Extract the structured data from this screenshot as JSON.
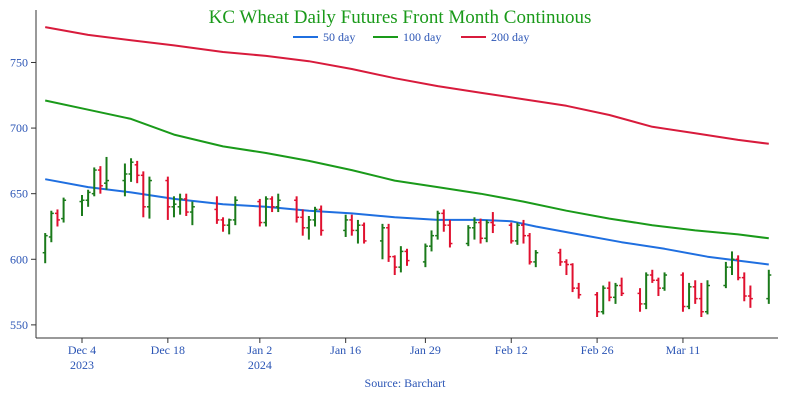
{
  "chart_data": {
    "type": "line",
    "title": "KC Wheat Daily Futures Front Month Continuous",
    "source": "Source: Barchart",
    "ylim": [
      540,
      790
    ],
    "yticks": [
      550,
      600,
      650,
      700,
      750
    ],
    "x_range": [
      "2023-11-28",
      "2024-03-25"
    ],
    "xticks": [
      {
        "date": "2023-12-04",
        "label": "Dec 4",
        "sublabel": "2023"
      },
      {
        "date": "2023-12-18",
        "label": "Dec 18",
        "sublabel": ""
      },
      {
        "date": "2024-01-02",
        "label": "Jan 2",
        "sublabel": "2024"
      },
      {
        "date": "2024-01-16",
        "label": "Jan 16",
        "sublabel": ""
      },
      {
        "date": "2024-01-29",
        "label": "Jan 29",
        "sublabel": ""
      },
      {
        "date": "2024-02-12",
        "label": "Feb 12",
        "sublabel": ""
      },
      {
        "date": "2024-02-26",
        "label": "Feb 26",
        "sublabel": ""
      },
      {
        "date": "2024-03-11",
        "label": "Mar 11",
        "sublabel": ""
      }
    ],
    "legend_position": "top-center",
    "grid": false,
    "colors": {
      "up": "#1a7a1a",
      "down": "#e0102f",
      "title": "#1a9a1a",
      "axis": "#333333"
    },
    "series": [
      {
        "name": "50 day",
        "color": "#1f6fe0",
        "points": [
          [
            "2023-11-28",
            661
          ],
          [
            "2023-12-05",
            655
          ],
          [
            "2023-12-12",
            651
          ],
          [
            "2023-12-19",
            646
          ],
          [
            "2023-12-27",
            642
          ],
          [
            "2024-01-03",
            640
          ],
          [
            "2024-01-10",
            637
          ],
          [
            "2024-01-17",
            635
          ],
          [
            "2024-01-24",
            632
          ],
          [
            "2024-01-31",
            630
          ],
          [
            "2024-02-07",
            630
          ],
          [
            "2024-02-12",
            629
          ],
          [
            "2024-02-16",
            625
          ],
          [
            "2024-02-23",
            619
          ],
          [
            "2024-03-01",
            613
          ],
          [
            "2024-03-08",
            608
          ],
          [
            "2024-03-15",
            602
          ],
          [
            "2024-03-25",
            596
          ]
        ]
      },
      {
        "name": "100 day",
        "color": "#1a9a1a",
        "points": [
          [
            "2023-11-28",
            721
          ],
          [
            "2023-12-05",
            714
          ],
          [
            "2023-12-12",
            707
          ],
          [
            "2023-12-19",
            695
          ],
          [
            "2023-12-27",
            686
          ],
          [
            "2024-01-03",
            681
          ],
          [
            "2024-01-10",
            675
          ],
          [
            "2024-01-17",
            668
          ],
          [
            "2024-01-24",
            660
          ],
          [
            "2024-01-31",
            655
          ],
          [
            "2024-02-07",
            650
          ],
          [
            "2024-02-14",
            644
          ],
          [
            "2024-02-21",
            637
          ],
          [
            "2024-02-28",
            631
          ],
          [
            "2024-03-06",
            626
          ],
          [
            "2024-03-13",
            622
          ],
          [
            "2024-03-20",
            619
          ],
          [
            "2024-03-25",
            616
          ]
        ]
      },
      {
        "name": "200 day",
        "color": "#d81b3c",
        "points": [
          [
            "2023-11-28",
            777
          ],
          [
            "2023-12-05",
            771
          ],
          [
            "2023-12-12",
            767
          ],
          [
            "2023-12-19",
            763
          ],
          [
            "2023-12-27",
            758
          ],
          [
            "2024-01-03",
            755
          ],
          [
            "2024-01-10",
            751
          ],
          [
            "2024-01-17",
            745
          ],
          [
            "2024-01-24",
            738
          ],
          [
            "2024-01-31",
            732
          ],
          [
            "2024-02-07",
            727
          ],
          [
            "2024-02-14",
            722
          ],
          [
            "2024-02-21",
            717
          ],
          [
            "2024-02-28",
            710
          ],
          [
            "2024-03-06",
            701
          ],
          [
            "2024-03-13",
            696
          ],
          [
            "2024-03-20",
            691
          ],
          [
            "2024-03-25",
            688
          ]
        ]
      }
    ],
    "ohlc_columns": [
      "date",
      "open",
      "high",
      "low",
      "close"
    ],
    "ohlc": [
      [
        "2023-11-28",
        605,
        620,
        597,
        618
      ],
      [
        "2023-11-29",
        617,
        637,
        613,
        635
      ],
      [
        "2023-11-30",
        635,
        638,
        625,
        630
      ],
      [
        "2023-12-01",
        631,
        647,
        628,
        645
      ],
      [
        "2023-12-04",
        644,
        649,
        633,
        645
      ],
      [
        "2023-12-05",
        645,
        653,
        640,
        651
      ],
      [
        "2023-12-06",
        650,
        670,
        648,
        668
      ],
      [
        "2023-12-07",
        668,
        671,
        650,
        656
      ],
      [
        "2023-12-08",
        658,
        678,
        653,
        660
      ],
      [
        "2023-12-11",
        660,
        673,
        648,
        665
      ],
      [
        "2023-12-12",
        665,
        677,
        659,
        674
      ],
      [
        "2023-12-13",
        672,
        675,
        658,
        664
      ],
      [
        "2023-12-14",
        664,
        667,
        632,
        640
      ],
      [
        "2023-12-15",
        640,
        663,
        631,
        660
      ],
      [
        "2023-12-18",
        660,
        663,
        630,
        640
      ],
      [
        "2023-12-19",
        640,
        648,
        632,
        642
      ],
      [
        "2023-12-20",
        640,
        650,
        634,
        646
      ],
      [
        "2023-12-21",
        646,
        650,
        633,
        636
      ],
      [
        "2023-12-22",
        636,
        644,
        626,
        640
      ],
      [
        "2023-12-26",
        638,
        648,
        627,
        630
      ],
      [
        "2023-12-27",
        630,
        632,
        621,
        626
      ],
      [
        "2023-12-28",
        626,
        631,
        619,
        630
      ],
      [
        "2023-12-29",
        630,
        648,
        626,
        645
      ],
      [
        "2024-01-02",
        644,
        646,
        625,
        628
      ],
      [
        "2024-01-03",
        628,
        648,
        625,
        646
      ],
      [
        "2024-01-04",
        646,
        648,
        636,
        640
      ],
      [
        "2024-01-05",
        640,
        650,
        636,
        645
      ],
      [
        "2024-01-08",
        645,
        648,
        628,
        632
      ],
      [
        "2024-01-09",
        632,
        638,
        618,
        624
      ],
      [
        "2024-01-10",
        624,
        633,
        615,
        630
      ],
      [
        "2024-01-11",
        630,
        640,
        625,
        638
      ],
      [
        "2024-01-12",
        638,
        641,
        618,
        622
      ],
      [
        "2024-01-16",
        622,
        634,
        617,
        630
      ],
      [
        "2024-01-17",
        630,
        634,
        618,
        622
      ],
      [
        "2024-01-18",
        622,
        630,
        612,
        626
      ],
      [
        "2024-01-19",
        626,
        628,
        612,
        614
      ],
      [
        "2024-01-22",
        614,
        627,
        600,
        624
      ],
      [
        "2024-01-23",
        624,
        627,
        598,
        602
      ],
      [
        "2024-01-24",
        602,
        603,
        588,
        594
      ],
      [
        "2024-01-25",
        594,
        610,
        590,
        606
      ],
      [
        "2024-01-26",
        606,
        608,
        595,
        599
      ],
      [
        "2024-01-29",
        598,
        612,
        594,
        610
      ],
      [
        "2024-01-30",
        610,
        622,
        606,
        618
      ],
      [
        "2024-01-31",
        618,
        637,
        615,
        635
      ],
      [
        "2024-02-01",
        635,
        638,
        621,
        626
      ],
      [
        "2024-02-02",
        626,
        630,
        609,
        612
      ],
      [
        "2024-02-05",
        612,
        626,
        610,
        624
      ],
      [
        "2024-02-06",
        624,
        632,
        615,
        628
      ],
      [
        "2024-02-07",
        628,
        631,
        612,
        616
      ],
      [
        "2024-02-08",
        616,
        630,
        613,
        628
      ],
      [
        "2024-02-09",
        628,
        636,
        620,
        626
      ],
      [
        "2024-02-12",
        626,
        628,
        612,
        614
      ],
      [
        "2024-02-13",
        614,
        628,
        611,
        626
      ],
      [
        "2024-02-14",
        626,
        630,
        612,
        618
      ],
      [
        "2024-02-15",
        618,
        620,
        596,
        598
      ],
      [
        "2024-02-16",
        598,
        607,
        594,
        605
      ],
      [
        "2024-02-20",
        605,
        608,
        595,
        598
      ],
      [
        "2024-02-21",
        598,
        600,
        588,
        596
      ],
      [
        "2024-02-22",
        596,
        597,
        575,
        578
      ],
      [
        "2024-02-23",
        578,
        582,
        570,
        573
      ],
      [
        "2024-02-26",
        573,
        575,
        556,
        560
      ],
      [
        "2024-02-27",
        560,
        580,
        558,
        578
      ],
      [
        "2024-02-28",
        578,
        583,
        568,
        571
      ],
      [
        "2024-02-29",
        571,
        582,
        566,
        580
      ],
      [
        "2024-03-01",
        580,
        586,
        572,
        574
      ],
      [
        "2024-03-04",
        574,
        578,
        560,
        566
      ],
      [
        "2024-03-05",
        566,
        590,
        562,
        588
      ],
      [
        "2024-03-06",
        588,
        592,
        582,
        584
      ],
      [
        "2024-03-07",
        584,
        586,
        572,
        578
      ],
      [
        "2024-03-08",
        578,
        590,
        576,
        588
      ],
      [
        "2024-03-11",
        588,
        590,
        560,
        564
      ],
      [
        "2024-03-12",
        564,
        582,
        562,
        579
      ],
      [
        "2024-03-13",
        579,
        584,
        566,
        570
      ],
      [
        "2024-03-14",
        570,
        582,
        556,
        560
      ],
      [
        "2024-03-15",
        560,
        584,
        558,
        580
      ],
      [
        "2024-03-18",
        580,
        598,
        578,
        594
      ],
      [
        "2024-03-19",
        594,
        606,
        588,
        600
      ],
      [
        "2024-03-20",
        600,
        603,
        584,
        586
      ],
      [
        "2024-03-21",
        586,
        590,
        568,
        572
      ],
      [
        "2024-03-22",
        572,
        580,
        563,
        570
      ],
      [
        "2024-03-25",
        570,
        592,
        566,
        588
      ]
    ]
  }
}
